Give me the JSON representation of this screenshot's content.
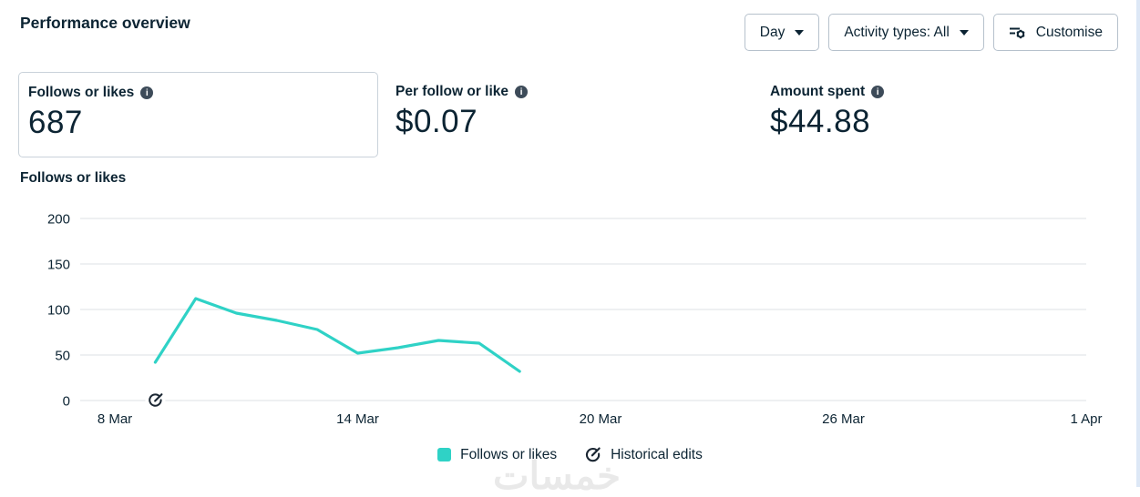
{
  "header": {
    "title": "Performance overview"
  },
  "toolbar": {
    "day_dropdown": {
      "label": "Day"
    },
    "activity_dropdown": {
      "label": "Activity types: All"
    },
    "customise_button": {
      "label": "Customise"
    }
  },
  "metrics": [
    {
      "label": "Follows or likes",
      "value": "687",
      "selected": true
    },
    {
      "label": "Per follow or like",
      "value": "$0.07",
      "selected": false
    },
    {
      "label": "Amount spent",
      "value": "$44.88",
      "selected": false
    }
  ],
  "chart_title": "Follows or likes",
  "chart_data": {
    "type": "line",
    "title": "Follows or likes",
    "grid": "horizontal",
    "y_axis": {
      "lim": [
        0,
        200
      ],
      "ticks": [
        0,
        50,
        100,
        150,
        200
      ]
    },
    "x_axis": {
      "tick_labels": [
        "8 Mar",
        "14 Mar",
        "20 Mar",
        "26 Mar",
        "1 Apr"
      ],
      "tick_day_indices": [
        0,
        6,
        12,
        18,
        24
      ],
      "total_days": 24
    },
    "series": [
      {
        "name": "Follows or likes",
        "color": "#2fd2c6",
        "points": [
          {
            "date": "9 Mar",
            "day_index": 1,
            "value": 42
          },
          {
            "date": "10 Mar",
            "day_index": 2,
            "value": 112
          },
          {
            "date": "11 Mar",
            "day_index": 3,
            "value": 96
          },
          {
            "date": "12 Mar",
            "day_index": 4,
            "value": 88
          },
          {
            "date": "13 Mar",
            "day_index": 5,
            "value": 78
          },
          {
            "date": "14 Mar",
            "day_index": 6,
            "value": 52
          },
          {
            "date": "15 Mar",
            "day_index": 7,
            "value": 58
          },
          {
            "date": "16 Mar",
            "day_index": 8,
            "value": 66
          },
          {
            "date": "17 Mar",
            "day_index": 9,
            "value": 63
          },
          {
            "date": "18 Mar",
            "day_index": 10,
            "value": 32
          }
        ]
      }
    ],
    "annotations": [
      {
        "type": "historical-edit",
        "date": "9 Mar",
        "day_index": 1,
        "y_value": 0
      }
    ],
    "legend": [
      {
        "label": "Follows or likes",
        "marker": "teal-square"
      },
      {
        "label": "Historical edits",
        "marker": "edit-circle-icon"
      }
    ],
    "legend_position": "bottom"
  },
  "watermark": "خمسات",
  "colors": {
    "accent_teal": "#2fd2c6",
    "text_navy": "#0c2433",
    "gridline": "#e4e7ea",
    "border": "#b6c1cc",
    "card_border": "#c9d2da",
    "info_icon_bg": "#3d4b59",
    "page_edge": "#dde8f6"
  }
}
